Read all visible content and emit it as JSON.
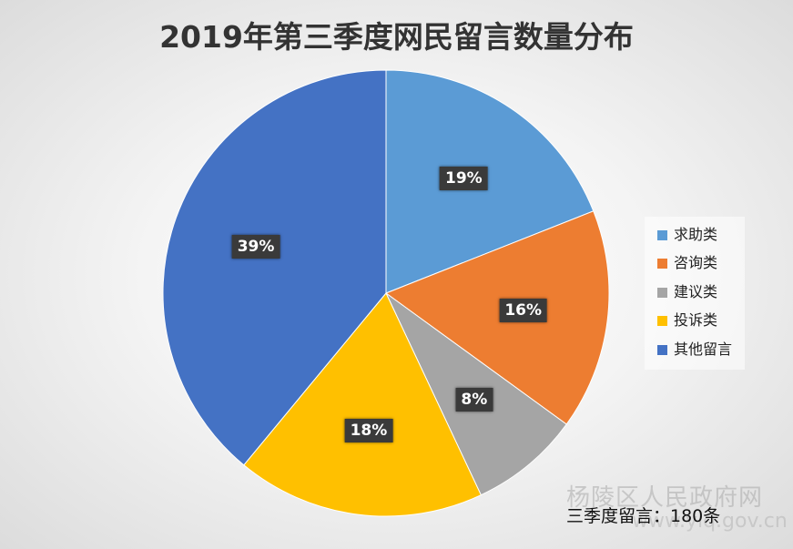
{
  "chart_data": {
    "type": "pie",
    "title": "2019年第三季度网民留言数量分布",
    "categories": [
      "求助类",
      "咨询类",
      "建议类",
      "投诉类",
      "其他留言"
    ],
    "values": [
      19,
      16,
      8,
      18,
      39
    ],
    "data_labels": [
      "19%",
      "16%",
      "8%",
      "18%",
      "39%"
    ],
    "colors": [
      "#5B9BD5",
      "#ED7D31",
      "#A5A5A5",
      "#FFC000",
      "#4472C4"
    ],
    "start_angle_deg": 0,
    "direction": "clockwise",
    "legend_position": "right"
  },
  "footnote": "三季度留言：180条",
  "watermark": {
    "text": "杨陵区人民政府网",
    "url": "www.ylq.gov.cn"
  }
}
